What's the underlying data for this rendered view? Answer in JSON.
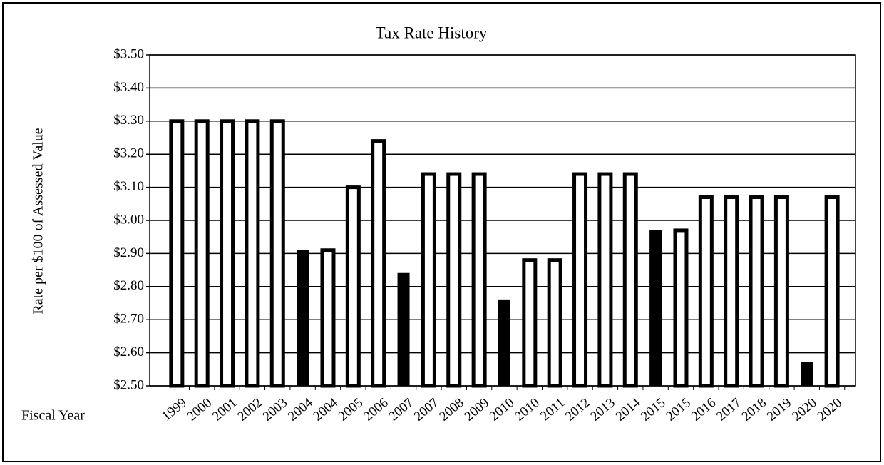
{
  "chart_data": {
    "type": "bar",
    "title": "Tax Rate History",
    "ylabel": "Rate per $100 of Assessed Value",
    "xlabel": "Fiscal Year",
    "categories": [
      "1999",
      "2000",
      "2001",
      "2002",
      "2003",
      "2004",
      "2004",
      "2005",
      "2006",
      "2007",
      "2007",
      "2008",
      "2009",
      "2010",
      "2010",
      "2011",
      "2012",
      "2013",
      "2014",
      "2015",
      "2015",
      "2016",
      "2017",
      "2018",
      "2019",
      "2020",
      "2020"
    ],
    "values": [
      3.3,
      3.3,
      3.3,
      3.3,
      3.3,
      2.91,
      2.91,
      3.1,
      3.24,
      2.84,
      3.14,
      3.14,
      3.14,
      2.76,
      2.88,
      2.88,
      3.14,
      3.14,
      3.14,
      2.97,
      2.97,
      3.07,
      3.07,
      3.07,
      3.07,
      2.57,
      3.07
    ],
    "colors": [
      "#ffffff",
      "#ffffff",
      "#ffffff",
      "#ffffff",
      "#ffffff",
      "#000000",
      "#ffffff",
      "#ffffff",
      "#ffffff",
      "#000000",
      "#ffffff",
      "#ffffff",
      "#ffffff",
      "#000000",
      "#ffffff",
      "#ffffff",
      "#ffffff",
      "#ffffff",
      "#ffffff",
      "#000000",
      "#ffffff",
      "#ffffff",
      "#ffffff",
      "#ffffff",
      "#ffffff",
      "#000000",
      "#ffffff"
    ],
    "ylim": [
      2.5,
      3.5
    ],
    "yticks": [
      {
        "value": 2.5,
        "label": "$2.50"
      },
      {
        "value": 2.6,
        "label": "$2.60"
      },
      {
        "value": 2.7,
        "label": "$2.70"
      },
      {
        "value": 2.8,
        "label": "$2.80"
      },
      {
        "value": 2.9,
        "label": "$2.90"
      },
      {
        "value": 3.0,
        "label": "$3.00"
      },
      {
        "value": 3.1,
        "label": "$3.10"
      },
      {
        "value": 3.2,
        "label": "$3.20"
      },
      {
        "value": 3.3,
        "label": "$3.30"
      },
      {
        "value": 3.4,
        "label": "$3.40"
      },
      {
        "value": 3.5,
        "label": "$3.50"
      }
    ],
    "grid": true
  }
}
